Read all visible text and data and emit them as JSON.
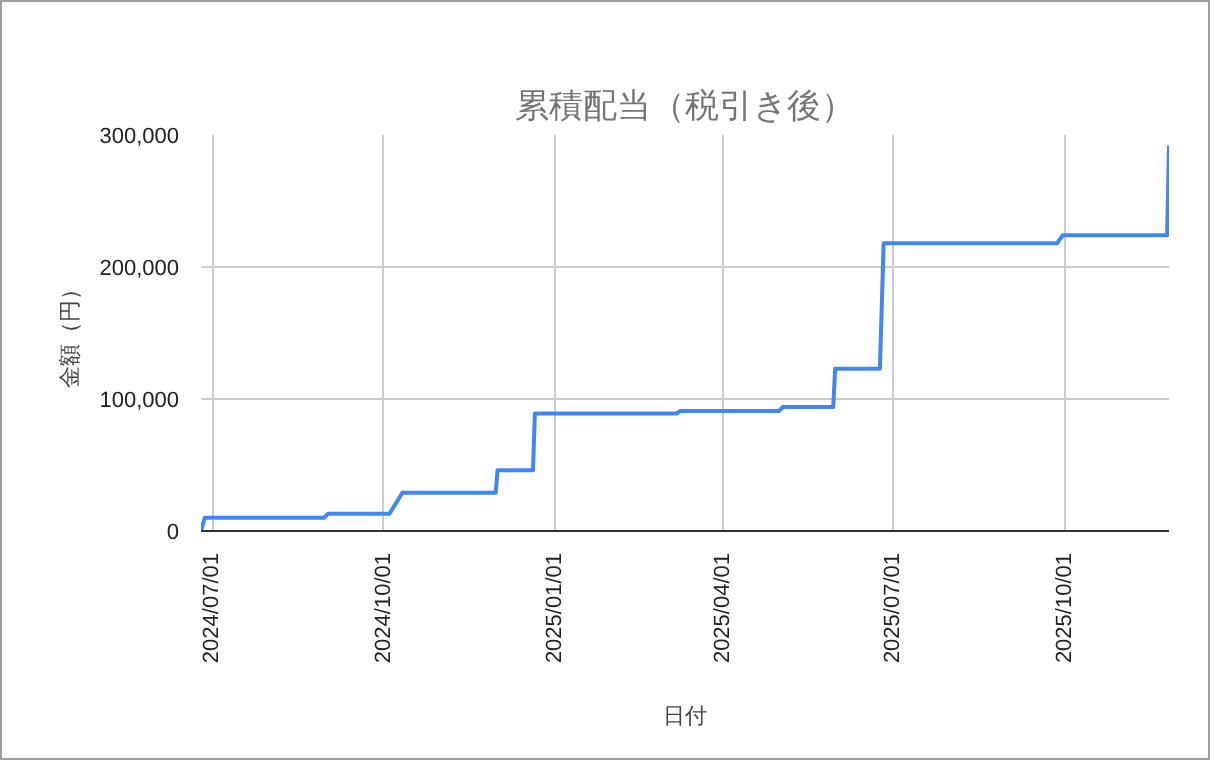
{
  "chart_data": {
    "type": "line",
    "title": "累積配当（税引き後）",
    "xlabel": "日付",
    "ylabel": "金額（円）",
    "x": [
      "2024-06-25",
      "2024-06-27",
      "2024-08-30",
      "2024-09-01",
      "2024-10-04",
      "2024-10-11",
      "2024-11-30",
      "2024-12-01",
      "2024-12-20",
      "2024-12-21",
      "2025-03-07",
      "2025-03-09",
      "2025-05-01",
      "2025-05-03",
      "2025-05-30",
      "2025-05-31",
      "2025-06-24",
      "2025-06-26",
      "2025-09-27",
      "2025-09-30",
      "2025-11-25",
      "2025-11-26"
    ],
    "series": [
      {
        "color": "#4285f4",
        "values": [
          0,
          10000,
          10000,
          13000,
          13000,
          29000,
          29000,
          46000,
          46000,
          89000,
          89000,
          91000,
          91000,
          94000,
          94000,
          123000,
          123000,
          218000,
          218000,
          224000,
          224000,
          292000
        ]
      }
    ],
    "xlim": [
      "2024-06-25",
      "2025-11-26"
    ],
    "xticks": [
      {
        "value": "2024-07-01",
        "label": "2024/07/01"
      },
      {
        "value": "2024-10-01",
        "label": "2024/10/01"
      },
      {
        "value": "2025-01-01",
        "label": "2025/01/01"
      },
      {
        "value": "2025-04-01",
        "label": "2025/04/01"
      },
      {
        "value": "2025-07-01",
        "label": "2025/07/01"
      },
      {
        "value": "2025-10-01",
        "label": "2025/10/01"
      }
    ],
    "ylim": [
      0,
      300000
    ],
    "yticks": [
      {
        "value": 0,
        "label": "0"
      },
      {
        "value": 100000,
        "label": "100,000"
      },
      {
        "value": 200000,
        "label": "200,000"
      },
      {
        "value": 300000,
        "label": "300,000"
      }
    ],
    "grid": true,
    "marker": "none",
    "line_style": "solid"
  }
}
